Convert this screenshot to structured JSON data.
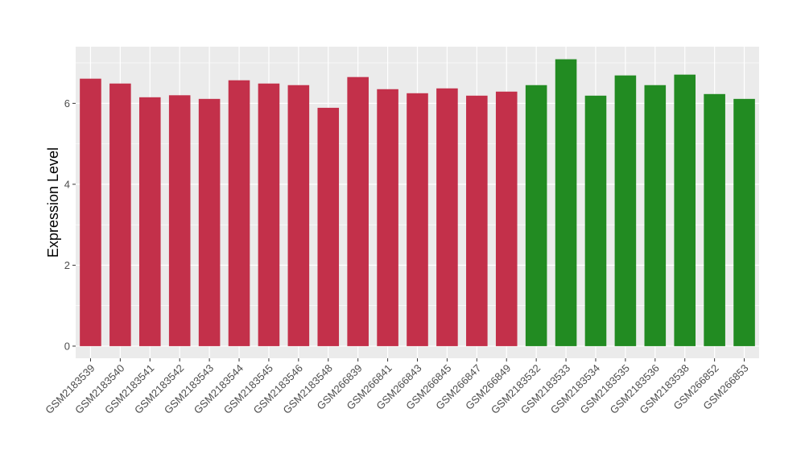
{
  "chart_data": {
    "type": "bar",
    "title": "",
    "xlabel": "",
    "ylabel": "Expression Level",
    "ylim": [
      -0.3,
      7.4
    ],
    "yticks": [
      0,
      2,
      4,
      6
    ],
    "ytick_labels": [
      "0",
      "2",
      "4",
      "6"
    ],
    "grid": true,
    "legend": "none",
    "background": "#ebebeb",
    "gridline_color": "#ffffff",
    "categories": [
      "GSM2183539",
      "GSM2183540",
      "GSM2183541",
      "GSM2183542",
      "GSM2183543",
      "GSM2183544",
      "GSM2183545",
      "GSM2183546",
      "GSM2183548",
      "GSM266839",
      "GSM266841",
      "GSM266843",
      "GSM266845",
      "GSM266847",
      "GSM266849",
      "GSM2183532",
      "GSM2183533",
      "GSM2183534",
      "GSM2183535",
      "GSM2183536",
      "GSM2183538",
      "GSM266852",
      "GSM266853"
    ],
    "values": [
      6.61,
      6.49,
      6.15,
      6.2,
      6.11,
      6.57,
      6.49,
      6.45,
      5.89,
      6.65,
      6.35,
      6.25,
      6.37,
      6.19,
      6.29,
      6.45,
      7.09,
      6.19,
      6.69,
      6.45,
      6.71,
      6.23,
      6.11
    ],
    "bar_colors": [
      "#c3304a",
      "#c3304a",
      "#c3304a",
      "#c3304a",
      "#c3304a",
      "#c3304a",
      "#c3304a",
      "#c3304a",
      "#c3304a",
      "#c3304a",
      "#c3304a",
      "#c3304a",
      "#c3304a",
      "#c3304a",
      "#c3304a",
      "#228b22",
      "#228b22",
      "#228b22",
      "#228b22",
      "#228b22",
      "#228b22",
      "#228b22",
      "#228b22"
    ]
  }
}
